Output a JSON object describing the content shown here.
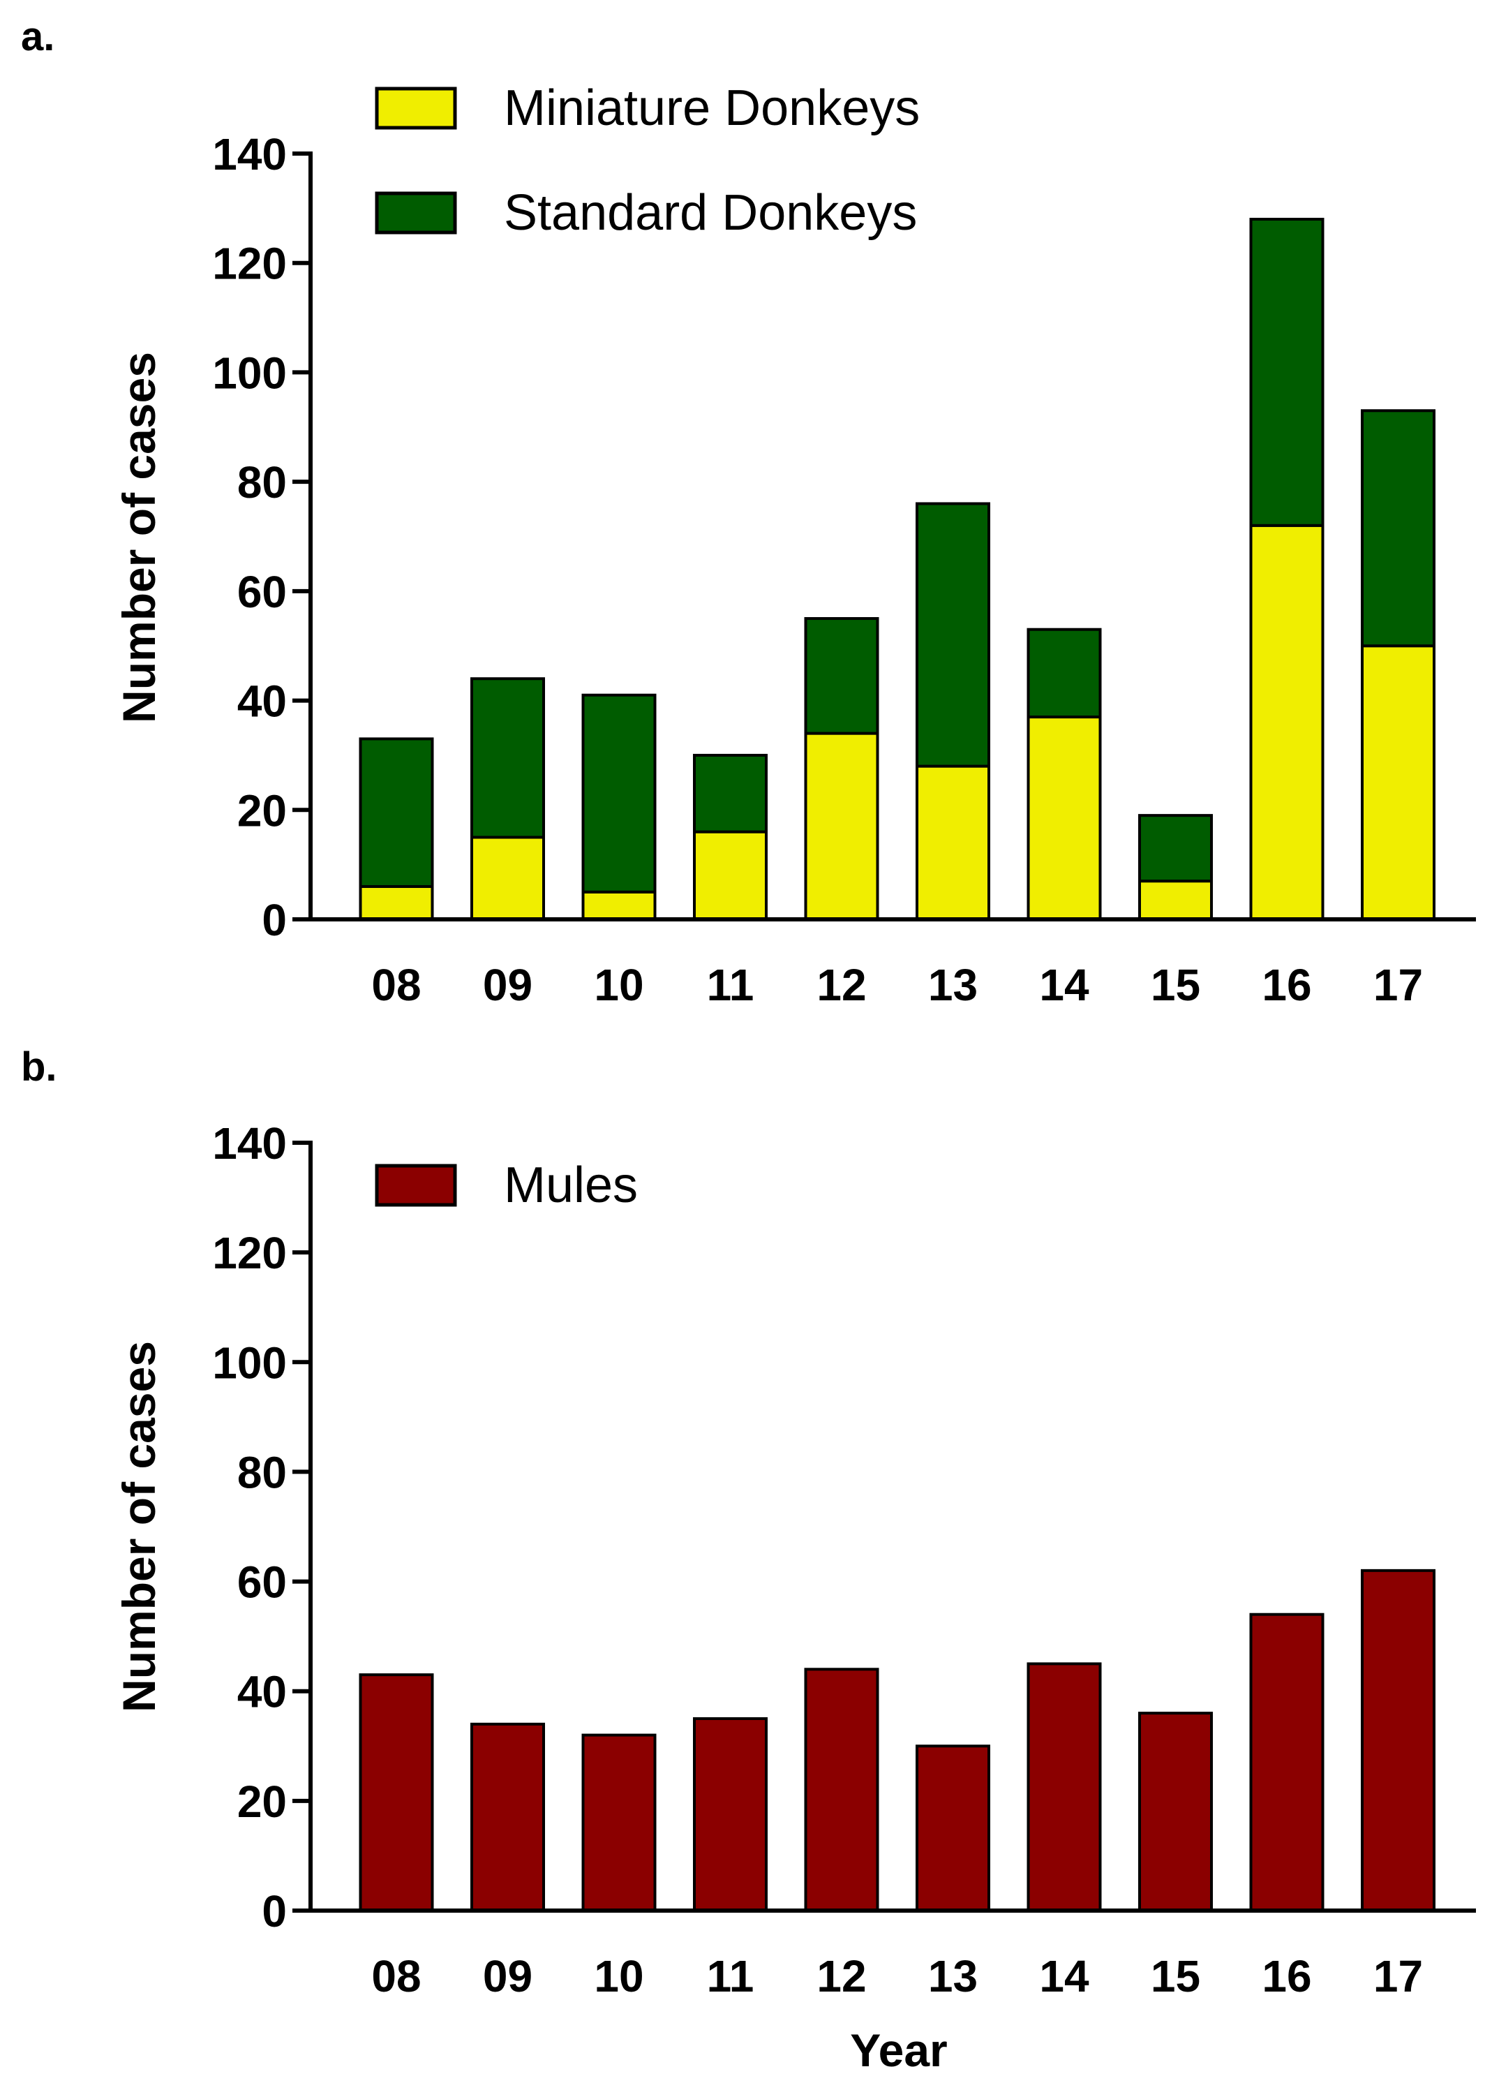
{
  "chart_data": [
    {
      "type": "bar",
      "stacked": true,
      "panel_label": "a.",
      "title": "",
      "xlabel": "",
      "ylabel": "Number of cases",
      "ylim": [
        0,
        140
      ],
      "yticks": [
        0,
        20,
        40,
        60,
        80,
        100,
        120,
        140
      ],
      "categories": [
        "08",
        "09",
        "10",
        "11",
        "12",
        "13",
        "14",
        "15",
        "16",
        "17"
      ],
      "series": [
        {
          "name": "Miniature Donkeys",
          "color": "#f0ee00",
          "values": [
            6,
            15,
            5,
            16,
            34,
            28,
            37,
            7,
            72,
            50
          ]
        },
        {
          "name": "Standard Donkeys",
          "color": "#005c00",
          "values": [
            27,
            29,
            36,
            14,
            21,
            48,
            16,
            12,
            56,
            43
          ]
        }
      ],
      "legend_position": "top-left"
    },
    {
      "type": "bar",
      "stacked": false,
      "panel_label": "b.",
      "title": "",
      "xlabel": "Year",
      "ylabel": "Number of cases",
      "ylim": [
        0,
        140
      ],
      "yticks": [
        0,
        20,
        40,
        60,
        80,
        100,
        120,
        140
      ],
      "categories": [
        "08",
        "09",
        "10",
        "11",
        "12",
        "13",
        "14",
        "15",
        "16",
        "17"
      ],
      "series": [
        {
          "name": "Mules",
          "color": "#8b0000",
          "values": [
            43,
            34,
            32,
            35,
            44,
            30,
            45,
            36,
            54,
            62
          ]
        }
      ],
      "legend_position": "top-left"
    }
  ]
}
